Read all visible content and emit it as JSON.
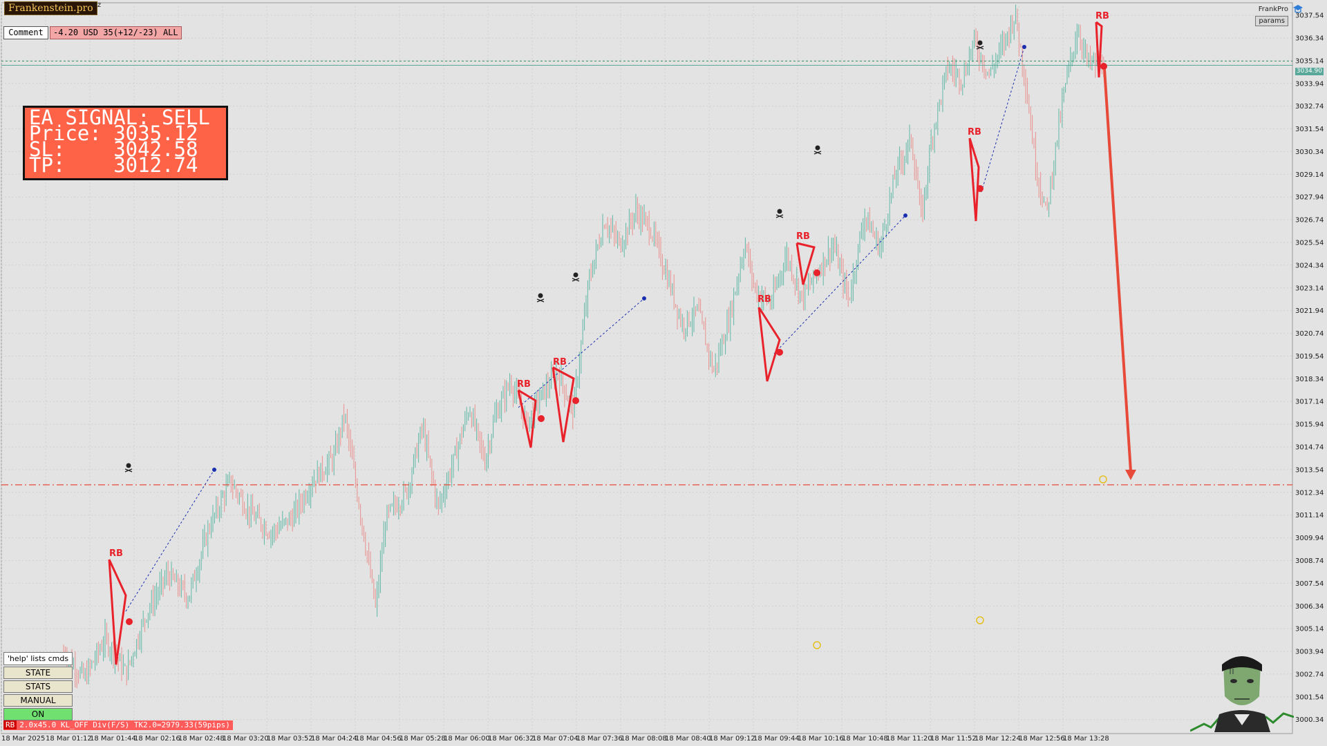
{
  "app": {
    "brand": "Frankenstein.pro",
    "symbol_suffix": "Oz",
    "comment_button": "Comment",
    "pl_badge": "-4.20 USD 35(+12/-23) ALL",
    "frankpro_label": "FrankPro",
    "params_button": "params",
    "current_price_tag": "3034.90"
  },
  "signal": {
    "line1": "EA SIGNAL: SELL",
    "line2": "Price: 3035.12",
    "line3": "SL:    3042.58",
    "line4": "TP:    3012.74"
  },
  "command_panel": {
    "hint": "'help' lists cmds",
    "buttons": [
      "STATE",
      "STATS",
      "MANUAL",
      "ON"
    ]
  },
  "status_bar": {
    "rb": "RB",
    "text": "2.0x45.0 KL_OFF Div(F/S) TK2.0=2979.33(59pips)"
  },
  "colors": {
    "background": "#e3e3e3",
    "bull": "#5fb8a6",
    "bear": "#e9908d",
    "signal_bg": "#ff6347",
    "rb_red": "#e8212a",
    "trend_blue": "#1a2fb0",
    "tp_line": "#e84a3a",
    "price_line": "#5aa89a"
  },
  "icons": [
    "skull-icon",
    "skull-icon",
    "skull-icon",
    "skull-icon",
    "skull-icon",
    "skull-icon"
  ],
  "chart_data": {
    "type": "candlestick",
    "y_ticks": [
      "3037.54",
      "3036.34",
      "3035.14",
      "3033.94",
      "3032.74",
      "3031.54",
      "3030.34",
      "3029.14",
      "3027.94",
      "3026.74",
      "3025.54",
      "3024.34",
      "3023.14",
      "3021.94",
      "3020.74",
      "3019.54",
      "3018.34",
      "3017.14",
      "3015.94",
      "3014.74",
      "3013.54",
      "3012.34",
      "3011.14",
      "3009.94",
      "3008.74",
      "3007.54",
      "3006.34",
      "3005.14",
      "3003.94",
      "3002.74",
      "3001.54",
      "3000.34"
    ],
    "x_ticks": [
      "18 Mar 2025",
      "18 Mar 01:12",
      "18 Mar 01:44",
      "18 Mar 02:16",
      "18 Mar 02:48",
      "18 Mar 03:20",
      "18 Mar 03:52",
      "18 Mar 04:24",
      "18 Mar 04:56",
      "18 Mar 05:28",
      "18 Mar 06:00",
      "18 Mar 06:32",
      "18 Mar 07:04",
      "18 Mar 07:36",
      "18 Mar 08:08",
      "18 Mar 08:40",
      "18 Mar 09:12",
      "18 Mar 09:44",
      "18 Mar 10:16",
      "18 Mar 10:48",
      "18 Mar 11:20",
      "18 Mar 11:52",
      "18 Mar 12:24",
      "18 Mar 12:56",
      "18 Mar 13:28"
    ],
    "ylim": [
      2999.6,
      3038.2
    ],
    "levels": {
      "current_price": 3034.9,
      "entry": 3035.12,
      "take_profit": 3012.74
    },
    "rb_pattern_label": "RB",
    "price_path": [
      [
        0,
        3003.9
      ],
      [
        0.02,
        3002.5
      ],
      [
        0.04,
        3004.6
      ],
      [
        0.06,
        3002.8
      ],
      [
        0.08,
        3006.0
      ],
      [
        0.1,
        3008.0
      ],
      [
        0.12,
        3006.8
      ],
      [
        0.14,
        3010.5
      ],
      [
        0.16,
        3012.9
      ],
      [
        0.18,
        3011.2
      ],
      [
        0.2,
        3010.2
      ],
      [
        0.22,
        3011.0
      ],
      [
        0.24,
        3013.0
      ],
      [
        0.26,
        3014.2
      ],
      [
        0.27,
        3016.5
      ],
      [
        0.285,
        3011.4
      ],
      [
        0.3,
        3006.2
      ],
      [
        0.31,
        3011.0
      ],
      [
        0.33,
        3012.4
      ],
      [
        0.345,
        3015.8
      ],
      [
        0.36,
        3011.5
      ],
      [
        0.375,
        3014.0
      ],
      [
        0.39,
        3016.8
      ],
      [
        0.405,
        3014.0
      ],
      [
        0.415,
        3016.4
      ],
      [
        0.43,
        3018.2
      ],
      [
        0.445,
        3016.0
      ],
      [
        0.46,
        3017.5
      ],
      [
        0.475,
        3018.7
      ],
      [
        0.49,
        3016.6
      ],
      [
        0.505,
        3023.5
      ],
      [
        0.52,
        3026.7
      ],
      [
        0.535,
        3025.4
      ],
      [
        0.55,
        3027.2
      ],
      [
        0.565,
        3026.2
      ],
      [
        0.58,
        3023.8
      ],
      [
        0.595,
        3021.2
      ],
      [
        0.61,
        3021.9
      ],
      [
        0.625,
        3018.7
      ],
      [
        0.64,
        3021.5
      ],
      [
        0.655,
        3025.5
      ],
      [
        0.665,
        3023.0
      ],
      [
        0.68,
        3022.3
      ],
      [
        0.695,
        3024.9
      ],
      [
        0.71,
        3022.6
      ],
      [
        0.725,
        3024.0
      ],
      [
        0.74,
        3025.4
      ],
      [
        0.755,
        3022.5
      ],
      [
        0.77,
        3027.0
      ],
      [
        0.785,
        3025.2
      ],
      [
        0.8,
        3029.2
      ],
      [
        0.815,
        3031.0
      ],
      [
        0.825,
        3026.8
      ],
      [
        0.835,
        3031.2
      ],
      [
        0.85,
        3034.8
      ],
      [
        0.865,
        3034.2
      ],
      [
        0.875,
        3036.2
      ],
      [
        0.89,
        3034.4
      ],
      [
        0.905,
        3036.2
      ],
      [
        0.915,
        3037.6
      ],
      [
        0.925,
        3034.0
      ],
      [
        0.935,
        3029.5
      ],
      [
        0.945,
        3027.0
      ],
      [
        0.955,
        3031.0
      ],
      [
        0.963,
        3033.8
      ],
      [
        0.975,
        3036.8
      ],
      [
        0.985,
        3035.0
      ],
      [
        1.0,
        3035.0
      ]
    ]
  }
}
